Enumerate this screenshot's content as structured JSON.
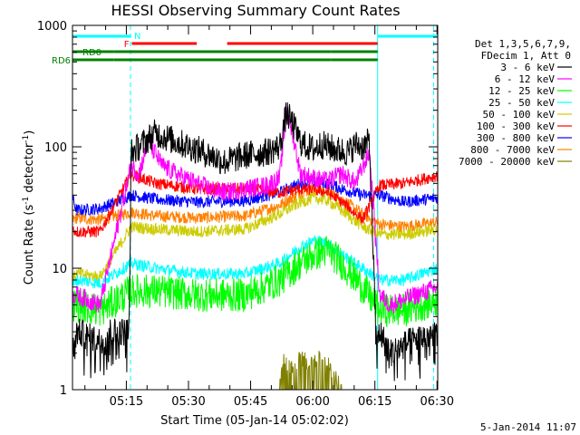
{
  "chart_data": {
    "type": "line",
    "title": "HESSI Observing Summary Count Rates",
    "xlabel": "Start Time (05-Jan-14 05:02:02)",
    "ylabel": "Count Rate (s⁻¹ detector⁻¹)",
    "ylabel_parts": {
      "main": "Count Rate (s",
      "exp1": "-1",
      "mid": " detector",
      "exp2": "-1",
      "end": ")"
    },
    "xlim": [
      0,
      5290
    ],
    "ylim": [
      1,
      1000
    ],
    "yscale": "log",
    "xticks": [
      {
        "t": 780,
        "label": "05:15"
      },
      {
        "t": 1680,
        "label": "05:30"
      },
      {
        "t": 2580,
        "label": "05:45"
      },
      {
        "t": 3480,
        "label": "06:00"
      },
      {
        "t": 4380,
        "label": "06:15"
      },
      {
        "t": 5280,
        "label": "06:30"
      }
    ],
    "yticks": [
      {
        "v": 1,
        "label": "1"
      },
      {
        "v": 10,
        "label": "10"
      },
      {
        "v": 100,
        "label": "100"
      },
      {
        "v": 1000,
        "label": "1000"
      }
    ],
    "legend_header": [
      "Det 1,3,5,6,7,9,",
      "FDecim 1, Att 0"
    ],
    "series": [
      {
        "name": "3 - 6 keV",
        "color": "#000000",
        "t": [
          0,
          60,
          400,
          500,
          820,
          850,
          960,
          1200,
          1500,
          1800,
          2000,
          2200,
          2500,
          2800,
          3000,
          3100,
          3200,
          3300,
          3400,
          3500,
          3600,
          3800,
          4000,
          4100,
          4200,
          4300,
          4400,
          4450,
          4600,
          4900,
          5290
        ],
        "values": [
          2,
          3,
          2.5,
          3,
          3,
          90,
          100,
          130,
          110,
          95,
          85,
          75,
          85,
          90,
          100,
          190,
          150,
          110,
          100,
          95,
          105,
          95,
          90,
          105,
          100,
          110,
          2.5,
          3,
          2,
          2.5,
          3
        ]
      },
      {
        "name": "6 - 12 keV",
        "color": "#ff00ff",
        "t": [
          0,
          60,
          400,
          850,
          960,
          1100,
          1300,
          1500,
          1800,
          2000,
          2200,
          2500,
          2800,
          3000,
          3100,
          3200,
          3300,
          3500,
          3700,
          3900,
          4100,
          4300,
          4450,
          4600,
          5290
        ],
        "values": [
          6,
          6,
          5,
          70,
          60,
          110,
          70,
          60,
          50,
          45,
          42,
          45,
          48,
          55,
          200,
          120,
          60,
          55,
          52,
          60,
          50,
          90,
          6,
          5,
          7
        ]
      },
      {
        "name": "12 - 25 keV",
        "color": "#00ff00",
        "t": [
          0,
          60,
          400,
          850,
          1200,
          1800,
          2500,
          3000,
          3300,
          3500,
          3700,
          3900,
          4200,
          4450,
          4800,
          5290
        ],
        "values": [
          5,
          5,
          4.5,
          6.5,
          6.5,
          6,
          6,
          8,
          11,
          13,
          14,
          11,
          7,
          4.5,
          4.5,
          5.5
        ]
      },
      {
        "name": "25 - 50 keV",
        "color": "#00ffff",
        "t": [
          0,
          60,
          400,
          850,
          1200,
          1800,
          2500,
          3000,
          3300,
          3500,
          3700,
          3900,
          4200,
          4450,
          4800,
          5290
        ],
        "values": [
          7,
          8,
          7.5,
          11,
          10,
          9,
          9,
          11,
          15,
          17,
          16,
          13,
          10,
          8,
          8,
          10
        ]
      },
      {
        "name": "50 - 100 keV",
        "color": "#cccc00",
        "t": [
          0,
          60,
          400,
          850,
          1200,
          1800,
          2500,
          3000,
          3300,
          3500,
          3700,
          3900,
          4200,
          4450,
          4800,
          5290
        ],
        "values": [
          8,
          9,
          8.5,
          22,
          21,
          20,
          21,
          28,
          35,
          38,
          36,
          30,
          22,
          19,
          19,
          21
        ]
      },
      {
        "name": "100 - 300 keV",
        "color": "#ff0000",
        "t": [
          0,
          60,
          400,
          850,
          1000,
          1200,
          1800,
          2500,
          3000,
          3300,
          3500,
          3700,
          3900,
          4200,
          4450,
          4800,
          5290
        ],
        "values": [
          21,
          20,
          20,
          60,
          55,
          50,
          45,
          45,
          42,
          45,
          44,
          42,
          35,
          25,
          48,
          50,
          58
        ]
      },
      {
        "name": "300 - 800 keV",
        "color": "#0000ff",
        "t": [
          0,
          60,
          400,
          850,
          1200,
          1800,
          2500,
          3000,
          3300,
          3500,
          3700,
          3900,
          4200,
          4450,
          4800,
          5290
        ],
        "values": [
          38,
          30,
          31,
          40,
          37,
          35,
          36,
          42,
          50,
          52,
          50,
          45,
          40,
          40,
          35,
          38
        ]
      },
      {
        "name": "800 - 7000 keV",
        "color": "#ff8000",
        "t": [
          0,
          60,
          400,
          850,
          1200,
          1800,
          2500,
          3000,
          3300,
          3500,
          3700,
          3900,
          4200,
          4450,
          4800,
          5290
        ],
        "values": [
          25,
          26,
          25,
          29,
          27,
          26,
          27,
          33,
          42,
          45,
          43,
          37,
          28,
          23,
          22,
          24
        ]
      },
      {
        "name": "7000 - 20000 keV",
        "color": "#808000",
        "t": [
          3000,
          3050,
          3150,
          3300,
          3450,
          3600,
          3750,
          3900
        ],
        "values": [
          1,
          1.8,
          1.5,
          1.9,
          1.6,
          1.9,
          1.5,
          1
        ]
      }
    ],
    "flag_bars": [
      {
        "label": "N",
        "color": "#00ffff",
        "segments": [
          [
            0,
            840
          ],
          [
            4420,
            5290
          ]
        ]
      },
      {
        "label": "F",
        "color": "#ff0000",
        "segments": [
          [
            860,
            1800
          ],
          [
            2240,
            4420
          ]
        ]
      },
      {
        "label": "RD0",
        "color": "#008000",
        "segments": [
          [
            0,
            600
          ],
          [
            600,
            2540
          ],
          [
            2540,
            3750
          ],
          [
            3750,
            4420
          ]
        ]
      },
      {
        "label": "RD6",
        "color": "#008000",
        "segments": [
          [
            0,
            600
          ],
          [
            600,
            2540
          ],
          [
            2540,
            3750
          ],
          [
            3750,
            4420
          ]
        ]
      }
    ],
    "vlines": [
      {
        "t": 0,
        "color": "#00ffff",
        "style": "solid"
      },
      {
        "t": 840,
        "color": "#00ffff",
        "style": "dashed"
      },
      {
        "t": 4420,
        "color": "#00ffff",
        "style": "solid"
      },
      {
        "t": 5230,
        "color": "#00ffff",
        "style": "dashed"
      }
    ],
    "timestamp": "5-Jan-2014 11:07"
  }
}
